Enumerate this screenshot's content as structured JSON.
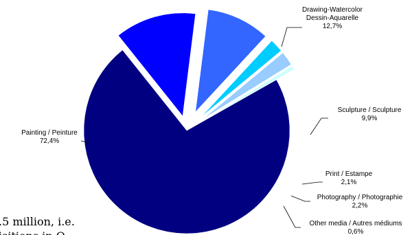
{
  "chart_data": {
    "type": "pie",
    "title": "",
    "slices": [
      {
        "label_en": "Painting / Peinture",
        "value": 72.4,
        "value_label": "72,4%",
        "color": "#000080"
      },
      {
        "label_en": "Drawing-Watercolor",
        "label_fr": "Dessin-Aquarelle",
        "value": 12.7,
        "value_label": "12,7%",
        "color": "#0000FF"
      },
      {
        "label_en": "Sculpture / Sculpture",
        "value": 9.9,
        "value_label": "9,9%",
        "color": "#3366FF"
      },
      {
        "label_en": "Print / Estampe",
        "value": 2.1,
        "value_label": "2,1%",
        "color": "#00CCFF"
      },
      {
        "label_en": "Photography / Photographie",
        "value": 2.2,
        "value_label": "2,2%",
        "color": "#99CCFF"
      },
      {
        "label_en": "Other media / Autres médiums",
        "value": 0.6,
        "value_label": "0,6%",
        "color": "#CCFFFF"
      }
    ]
  },
  "background_text": {
    "line1": ".5 million,  i.e.",
    "line2": "isitions in Q"
  }
}
